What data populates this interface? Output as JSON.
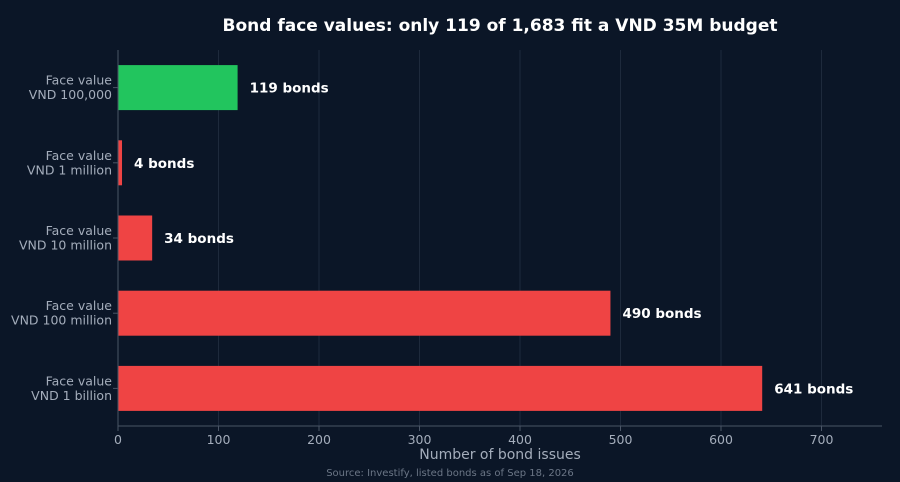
{
  "chart_data": {
    "type": "bar",
    "orientation": "horizontal",
    "title": "Bond face values: only 119 of 1,683 fit a VND 35M budget",
    "xlabel": "Number of bond issues",
    "ylabel": "",
    "source": "Source: Investify, listed bonds as of Sep 18, 2026",
    "xlim": [
      0,
      760
    ],
    "xticks": [
      0,
      100,
      200,
      300,
      400,
      500,
      600,
      700
    ],
    "grid": true,
    "categories": [
      [
        "Face value",
        "VND 100,000"
      ],
      [
        "Face value",
        "VND 1 million"
      ],
      [
        "Face value",
        "VND 10 million"
      ],
      [
        "Face value",
        "VND 100 million"
      ],
      [
        "Face value",
        "VND 1 billion"
      ]
    ],
    "values": [
      119,
      4,
      34,
      490,
      641
    ],
    "value_labels": [
      "119 bonds",
      "4 bonds",
      "34 bonds",
      "490 bonds",
      "641 bonds"
    ],
    "colors": [
      "#22c55e",
      "#ef4444",
      "#ef4444",
      "#ef4444",
      "#ef4444"
    ]
  }
}
